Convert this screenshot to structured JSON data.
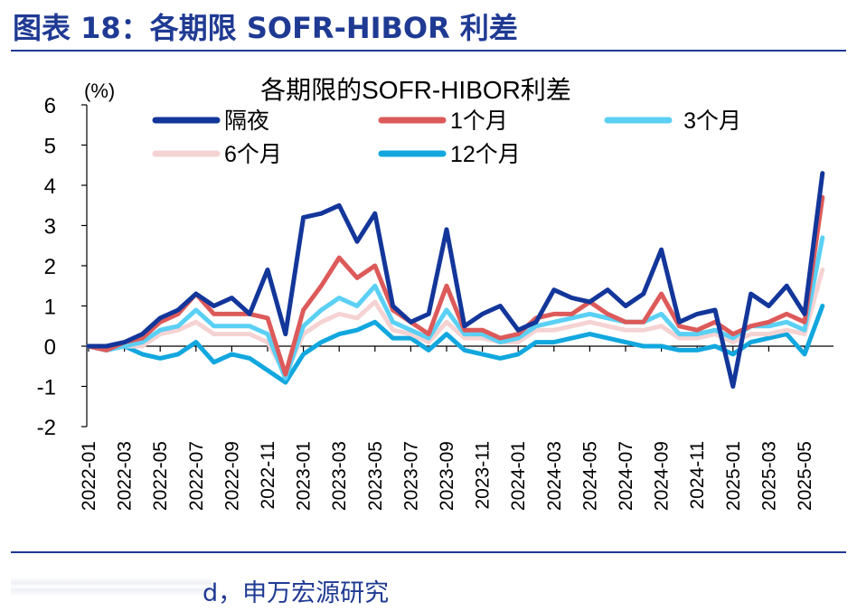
{
  "figure_title": "图表 18：各期限 SOFR-HIBOR 利差",
  "source_text": "d，申万宏源研究",
  "chart_data": {
    "type": "line",
    "title": "各期限的SOFR-HIBOR利差",
    "unit_label": "(%)",
    "ylim": [
      -2,
      6
    ],
    "yticks": [
      "6",
      "5",
      "4",
      "3",
      "2",
      "1",
      "0",
      "-1",
      "-2"
    ],
    "x_tick_labels": [
      "2022-01",
      "2022-03",
      "2022-05",
      "2022-07",
      "2022-09",
      "2022-11",
      "2023-01",
      "2023-03",
      "2023-05",
      "2023-07",
      "2023-09",
      "2023-11",
      "2024-01",
      "2024-03",
      "2024-05",
      "2024-07",
      "2024-09",
      "2024-11",
      "2025-01",
      "2025-03",
      "2025-05"
    ],
    "x": [
      "2022-01",
      "2022-02",
      "2022-03",
      "2022-04",
      "2022-05",
      "2022-06",
      "2022-07",
      "2022-08",
      "2022-09",
      "2022-10",
      "2022-11",
      "2022-12",
      "2023-01",
      "2023-02",
      "2023-03",
      "2023-04",
      "2023-05",
      "2023-06",
      "2023-07",
      "2023-08",
      "2023-09",
      "2023-10",
      "2023-11",
      "2023-12",
      "2024-01",
      "2024-02",
      "2024-03",
      "2024-04",
      "2024-05",
      "2024-06",
      "2024-07",
      "2024-08",
      "2024-09",
      "2024-10",
      "2024-11",
      "2024-12",
      "2025-01",
      "2025-02",
      "2025-03",
      "2025-04",
      "2025-05",
      "2025-06"
    ],
    "series": [
      {
        "name": "隔夜",
        "color": "#13369a",
        "values": [
          0.0,
          0.0,
          0.1,
          0.3,
          0.7,
          0.9,
          1.3,
          1.0,
          1.2,
          0.8,
          1.9,
          0.3,
          3.2,
          3.3,
          3.5,
          2.6,
          3.3,
          1.0,
          0.6,
          0.8,
          2.9,
          0.5,
          0.8,
          1.0,
          0.4,
          0.6,
          1.4,
          1.2,
          1.1,
          1.4,
          1.0,
          1.3,
          2.4,
          0.6,
          0.8,
          0.9,
          -1.0,
          1.3,
          1.0,
          1.5,
          0.8,
          4.3
        ]
      },
      {
        "name": "1个月",
        "color": "#dd5a5a",
        "values": [
          0.0,
          -0.1,
          0.1,
          0.2,
          0.6,
          0.8,
          1.3,
          0.8,
          0.8,
          0.8,
          0.7,
          -0.7,
          0.9,
          1.5,
          2.2,
          1.7,
          2.0,
          0.9,
          0.6,
          0.3,
          1.5,
          0.4,
          0.4,
          0.2,
          0.3,
          0.7,
          0.8,
          0.8,
          1.1,
          0.8,
          0.6,
          0.6,
          1.3,
          0.5,
          0.4,
          0.6,
          0.3,
          0.5,
          0.6,
          0.8,
          0.6,
          3.7
        ]
      },
      {
        "name": "3个月",
        "color": "#5bd0f4",
        "values": [
          0.0,
          -0.1,
          0.0,
          0.1,
          0.4,
          0.5,
          0.9,
          0.5,
          0.5,
          0.5,
          0.3,
          -0.8,
          0.5,
          0.9,
          1.2,
          1.0,
          1.5,
          0.6,
          0.4,
          0.2,
          0.9,
          0.3,
          0.3,
          0.1,
          0.2,
          0.5,
          0.6,
          0.7,
          0.8,
          0.7,
          0.6,
          0.6,
          0.8,
          0.3,
          0.3,
          0.4,
          0.2,
          0.5,
          0.5,
          0.6,
          0.4,
          2.7
        ]
      },
      {
        "name": "6个月",
        "color": "#f5d3d3",
        "values": [
          0.0,
          -0.1,
          0.0,
          0.0,
          0.3,
          0.4,
          0.6,
          0.3,
          0.3,
          0.3,
          0.1,
          -0.7,
          0.3,
          0.6,
          0.8,
          0.7,
          1.1,
          0.4,
          0.3,
          0.1,
          0.6,
          0.2,
          0.2,
          0.1,
          0.1,
          0.4,
          0.4,
          0.5,
          0.6,
          0.5,
          0.4,
          0.4,
          0.5,
          0.2,
          0.2,
          0.3,
          0.1,
          0.3,
          0.3,
          0.4,
          0.3,
          1.9
        ]
      },
      {
        "name": "12个月",
        "color": "#12a7de",
        "values": [
          0.0,
          -0.1,
          0.0,
          -0.2,
          -0.3,
          -0.2,
          0.1,
          -0.4,
          -0.2,
          -0.3,
          -0.6,
          -0.9,
          -0.2,
          0.1,
          0.3,
          0.4,
          0.6,
          0.2,
          0.2,
          -0.1,
          0.3,
          -0.1,
          -0.2,
          -0.3,
          -0.2,
          0.1,
          0.1,
          0.2,
          0.3,
          0.2,
          0.1,
          0.0,
          0.0,
          -0.1,
          -0.1,
          0.0,
          -0.2,
          0.1,
          0.2,
          0.3,
          -0.2,
          1.0
        ]
      }
    ]
  }
}
